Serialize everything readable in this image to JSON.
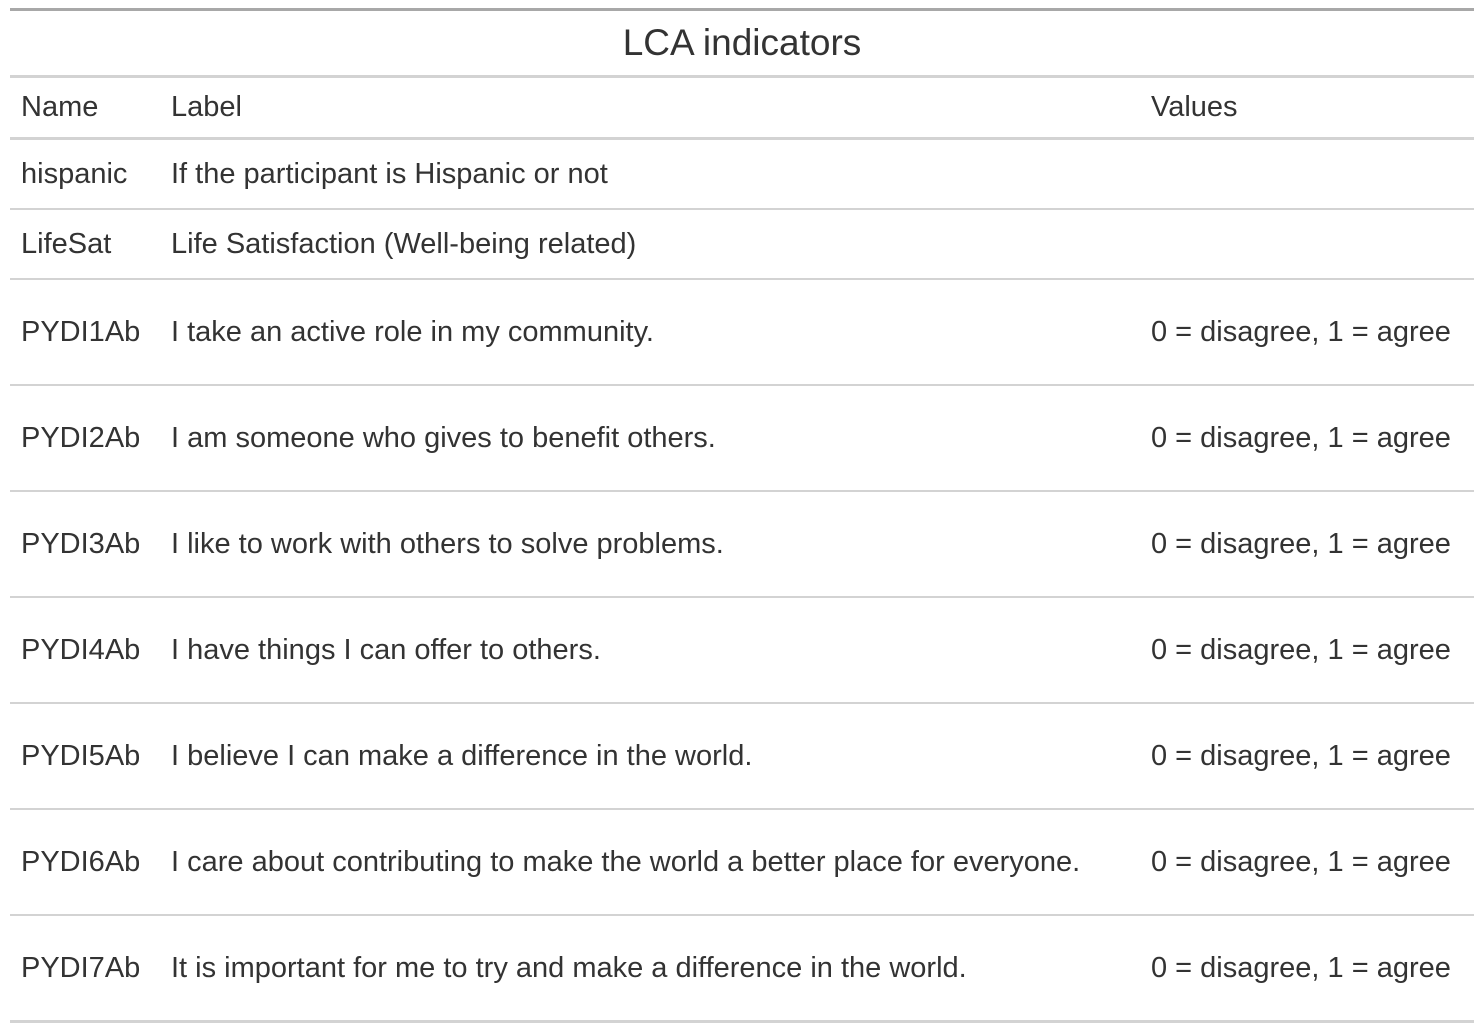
{
  "table": {
    "title": "LCA indicators",
    "columns": {
      "name": "Name",
      "label": "Label",
      "values": "Values"
    },
    "rows": [
      {
        "name": "hispanic",
        "label": "If the participant is Hispanic or not",
        "values": ""
      },
      {
        "name": "LifeSat",
        "label": "Life Satisfaction (Well-being related)",
        "values": ""
      },
      {
        "name": "PYDI1Ab",
        "label": "I take an active role in my community.",
        "values": "0 = disagree, 1 = agree"
      },
      {
        "name": "PYDI2Ab",
        "label": "I am someone who gives to benefit others.",
        "values": "0 = disagree, 1 = agree"
      },
      {
        "name": "PYDI3Ab",
        "label": "I like to work with others to solve problems.",
        "values": "0 = disagree, 1 = agree"
      },
      {
        "name": "PYDI4Ab",
        "label": "I have things I can offer to others.",
        "values": "0 = disagree, 1 = agree"
      },
      {
        "name": "PYDI5Ab",
        "label": "I believe I can make a difference in the world.",
        "values": "0 = disagree, 1 = agree"
      },
      {
        "name": "PYDI6Ab",
        "label": "I care about contributing to make the world a better place for everyone.",
        "values": "0 = disagree, 1 = agree"
      },
      {
        "name": "PYDI7Ab",
        "label": "It is important for me to try and make a difference in the world.",
        "values": "0 = disagree, 1 = agree"
      }
    ]
  }
}
